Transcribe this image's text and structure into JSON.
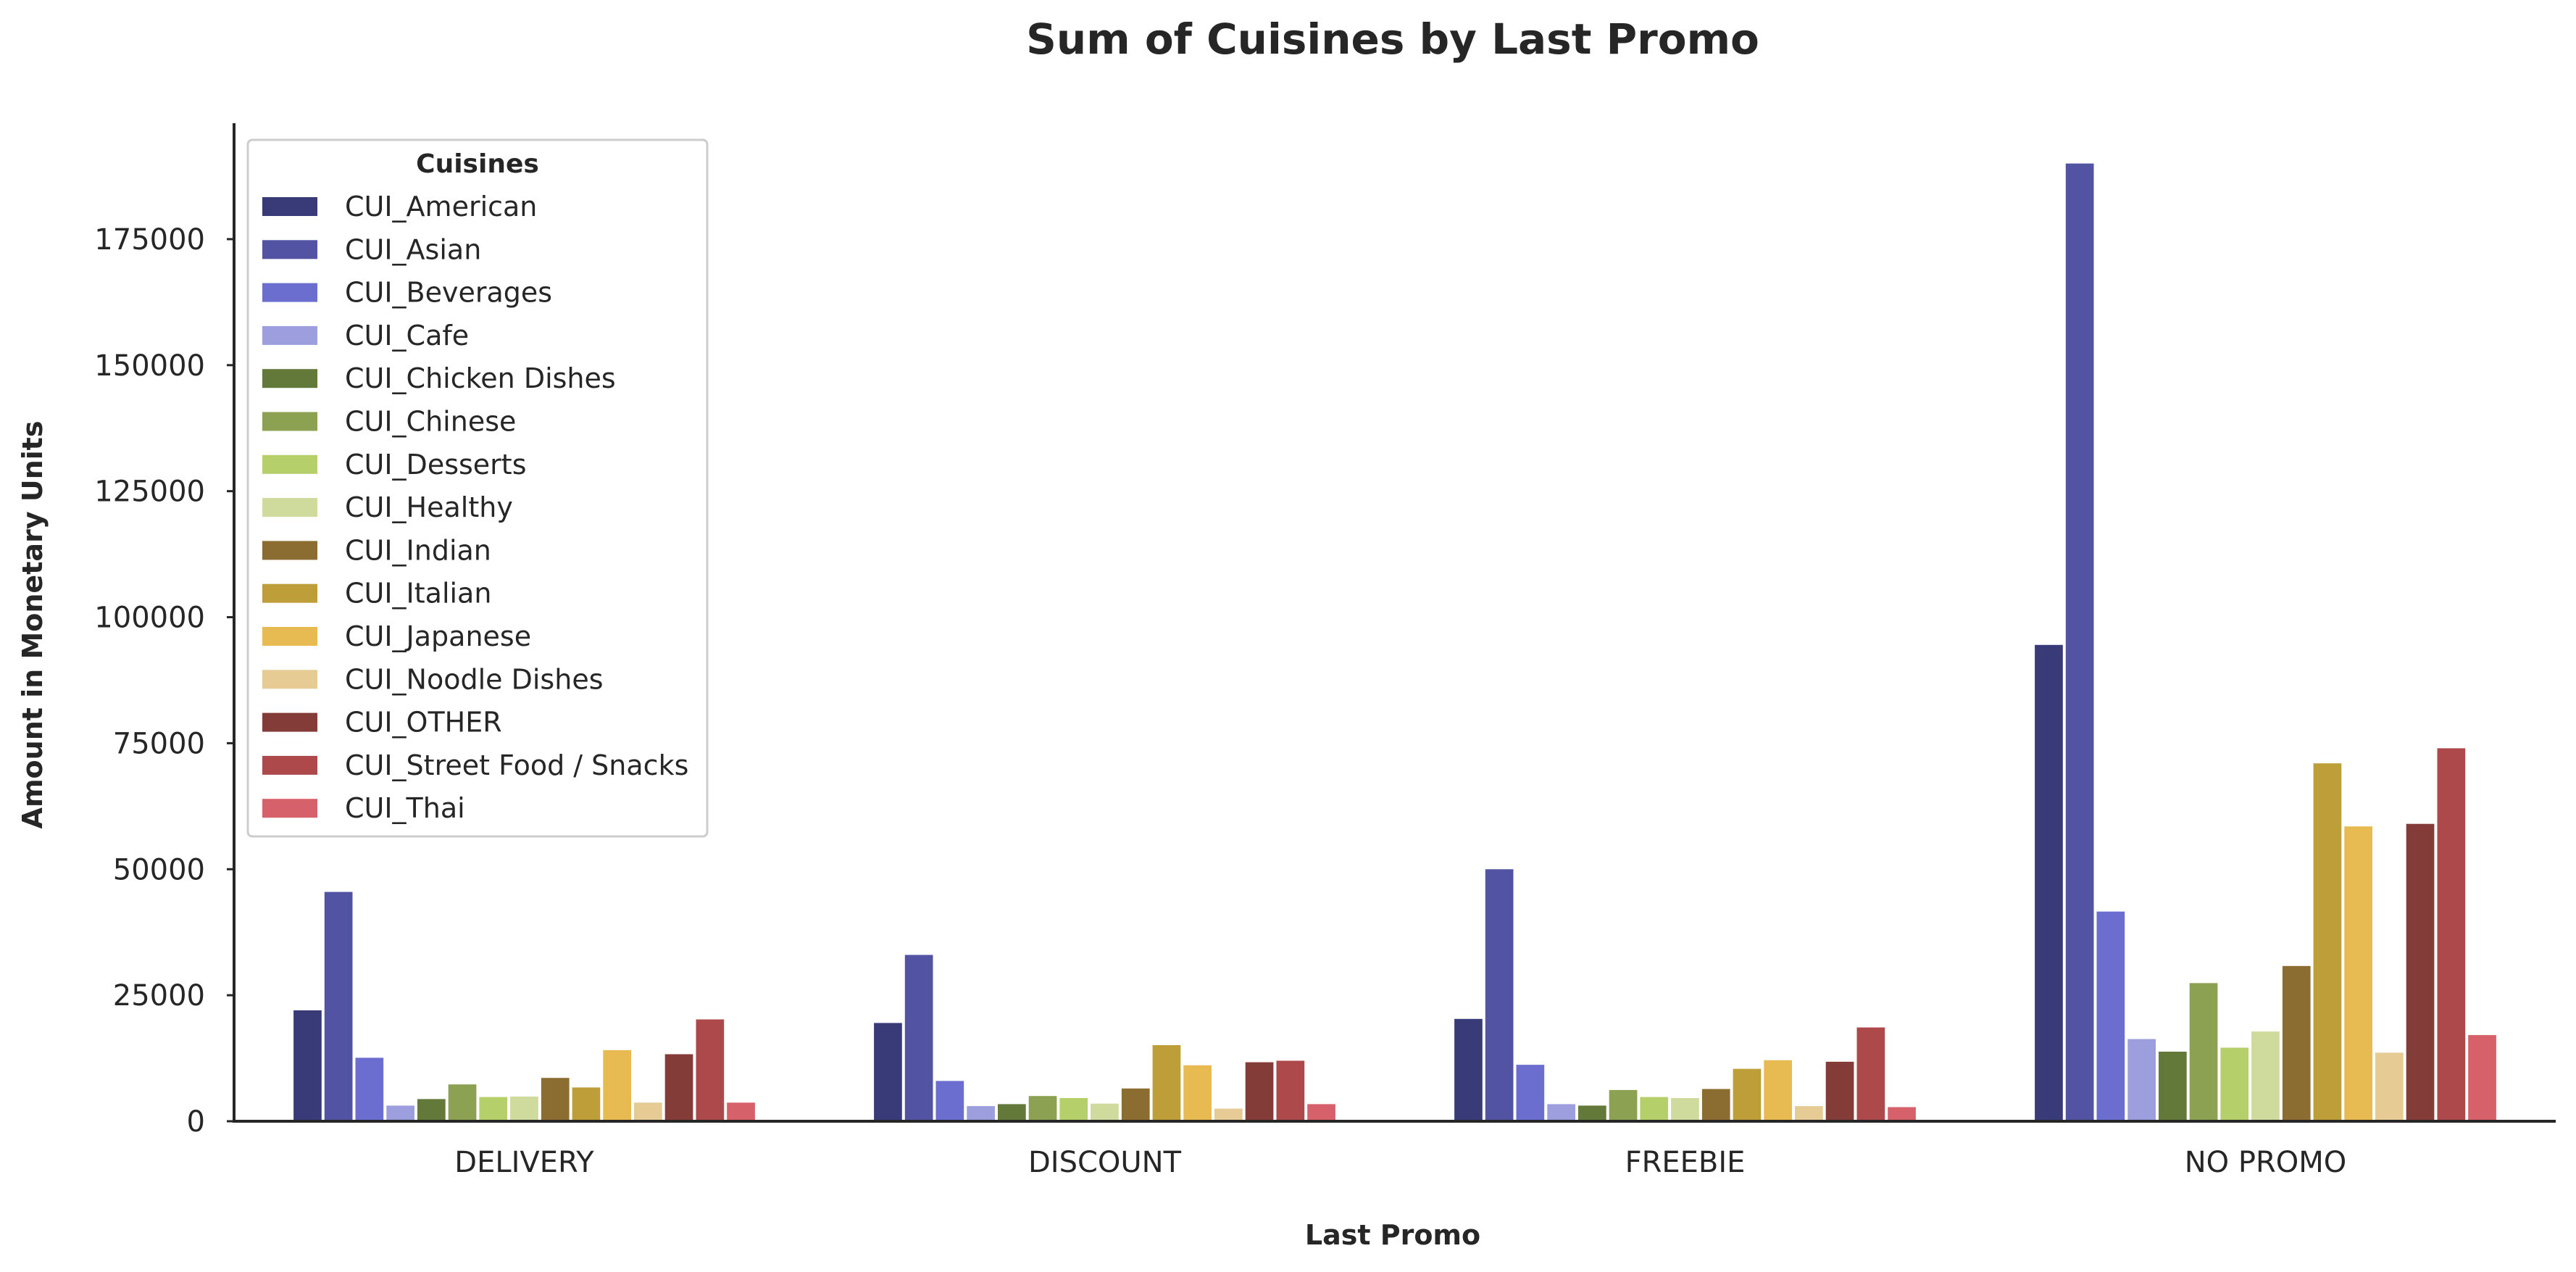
{
  "chart_data": {
    "type": "bar",
    "title": "Sum of Cuisines by Last Promo",
    "xlabel": "Last Promo",
    "ylabel": "Amount in Monetary Units",
    "categories": [
      "DELIVERY",
      "DISCOUNT",
      "FREEBIE",
      "NO PROMO"
    ],
    "ylim": [
      0,
      198000
    ],
    "yticks": [
      0,
      25000,
      50000,
      75000,
      100000,
      125000,
      150000,
      175000
    ],
    "grid": false,
    "legend": {
      "title": "Cuisines",
      "placement": "top-left"
    },
    "series": [
      {
        "name": "CUI_American",
        "color": "#393b79",
        "values": [
          22000,
          19500,
          20300,
          94500
        ]
      },
      {
        "name": "CUI_Asian",
        "color": "#5254a3",
        "values": [
          45500,
          33000,
          50000,
          190000
        ]
      },
      {
        "name": "CUI_Beverages",
        "color": "#6b6ecf",
        "values": [
          12600,
          8000,
          11200,
          41600
        ]
      },
      {
        "name": "CUI_Cafe",
        "color": "#9c9ede",
        "values": [
          3100,
          3000,
          3400,
          16300
        ]
      },
      {
        "name": "CUI_Chicken Dishes",
        "color": "#637939",
        "values": [
          4400,
          3400,
          3100,
          13800
        ]
      },
      {
        "name": "CUI_Chinese",
        "color": "#8ca252",
        "values": [
          7300,
          5000,
          6200,
          27400
        ]
      },
      {
        "name": "CUI_Desserts",
        "color": "#b5cf6b",
        "values": [
          4800,
          4600,
          4800,
          14600
        ]
      },
      {
        "name": "CUI_Healthy",
        "color": "#cedb9c",
        "values": [
          4900,
          3500,
          4600,
          17800
        ]
      },
      {
        "name": "CUI_Indian",
        "color": "#8c6d31",
        "values": [
          8600,
          6500,
          6400,
          30800
        ]
      },
      {
        "name": "CUI_Italian",
        "color": "#bd9e39",
        "values": [
          6700,
          15100,
          10400,
          71000
        ]
      },
      {
        "name": "CUI_Japanese",
        "color": "#e7ba52",
        "values": [
          14100,
          11100,
          12100,
          58500
        ]
      },
      {
        "name": "CUI_Noodle Dishes",
        "color": "#e7cb94",
        "values": [
          3700,
          2500,
          3000,
          13600
        ]
      },
      {
        "name": "CUI_OTHER",
        "color": "#843c39",
        "values": [
          13300,
          11700,
          11800,
          59000
        ]
      },
      {
        "name": "CUI_Street Food / Snacks",
        "color": "#ad494a",
        "values": [
          20200,
          12000,
          18600,
          74000
        ]
      },
      {
        "name": "CUI_Thai",
        "color": "#d6616b",
        "values": [
          3700,
          3400,
          2800,
          17100
        ]
      }
    ]
  }
}
